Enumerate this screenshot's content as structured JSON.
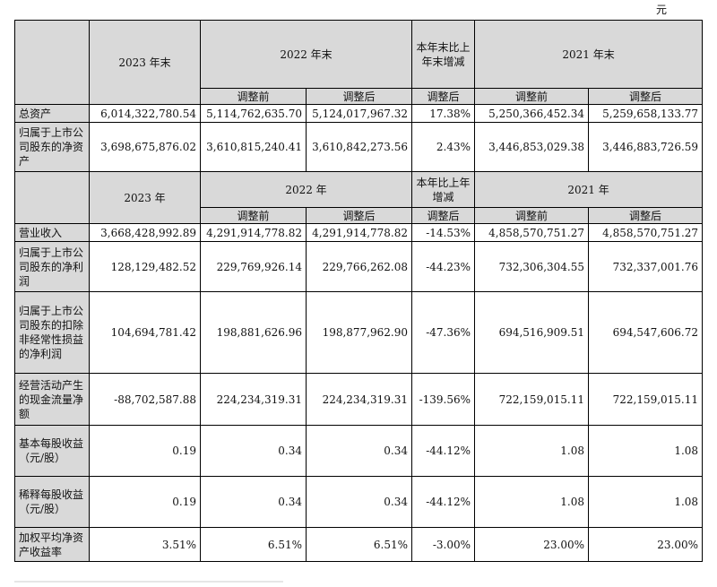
{
  "unit": "元",
  "balance_header": {
    "col1": "2023 年末",
    "col2": "2022 年末",
    "col3": "本年末比上年末增减",
    "col4": "2021 年末",
    "sub_before": "调整前",
    "sub_after": "调整后",
    "sub_after_change": "调整后",
    "sub_before_2021": "调整前",
    "sub_after_2021": "调整后"
  },
  "balance_rows": [
    {
      "label": "总资产",
      "v2023": "6,014,322,780.54",
      "v2022_before": "5,114,762,635.70",
      "v2022_after": "5,124,017,967.32",
      "change": "17.38%",
      "v2021_before": "5,250,366,452.34",
      "v2021_after": "5,259,658,133.77"
    },
    {
      "label": "归属于上市公司股东的净资产",
      "v2023": "3,698,675,876.02",
      "v2022_before": "3,610,815,240.41",
      "v2022_after": "3,610,842,273.56",
      "change": "2.43%",
      "v2021_before": "3,446,853,029.38",
      "v2021_after": "3,446,883,726.59"
    }
  ],
  "income_header": {
    "col1": "2023 年",
    "col2": "2022 年",
    "col3": "本年比上年增减",
    "col4": "2021 年",
    "sub_before": "调整前",
    "sub_after": "调整后",
    "sub_after_change": "调整后",
    "sub_before_2021": "调整前",
    "sub_after_2021": "调整后"
  },
  "income_rows": [
    {
      "label": "营业收入",
      "v2023": "3,668,428,992.89",
      "v2022_before": "4,291,914,778.82",
      "v2022_after": "4,291,914,778.82",
      "change": "-14.53%",
      "v2021_before": "4,858,570,751.27",
      "v2021_after": "4,858,570,751.27"
    },
    {
      "label": "归属于上市公司股东的净利润",
      "v2023": "128,129,482.52",
      "v2022_before": "229,769,926.14",
      "v2022_after": "229,766,262.08",
      "change": "-44.23%",
      "v2021_before": "732,306,304.55",
      "v2021_after": "732,337,001.76"
    },
    {
      "label": "归属于上市公司股东的扣除非经常性损益的净利润",
      "v2023": "104,694,781.42",
      "v2022_before": "198,881,626.96",
      "v2022_after": "198,877,962.90",
      "change": "-47.36%",
      "v2021_before": "694,516,909.51",
      "v2021_after": "694,547,606.72"
    },
    {
      "label": "经营活动产生的现金流量净额",
      "v2023": "-88,702,587.88",
      "v2022_before": "224,234,319.31",
      "v2022_after": "224,234,319.31",
      "change": "-139.56%",
      "v2021_before": "722,159,015.11",
      "v2021_after": "722,159,015.11"
    },
    {
      "label": "基本每股收益（元/股）",
      "v2023": "0.19",
      "v2022_before": "0.34",
      "v2022_after": "0.34",
      "change": "-44.12%",
      "v2021_before": "1.08",
      "v2021_after": "1.08"
    },
    {
      "label": "稀释每股收益（元/股）",
      "v2023": "0.19",
      "v2022_before": "0.34",
      "v2022_after": "0.34",
      "change": "-44.12%",
      "v2021_before": "1.08",
      "v2021_after": "1.08"
    },
    {
      "label": "加权平均净资产收益率",
      "v2023": "3.51%",
      "v2022_before": "6.51%",
      "v2022_after": "6.51%",
      "change": "-3.00%",
      "v2021_before": "23.00%",
      "v2021_after": "23.00%"
    }
  ]
}
